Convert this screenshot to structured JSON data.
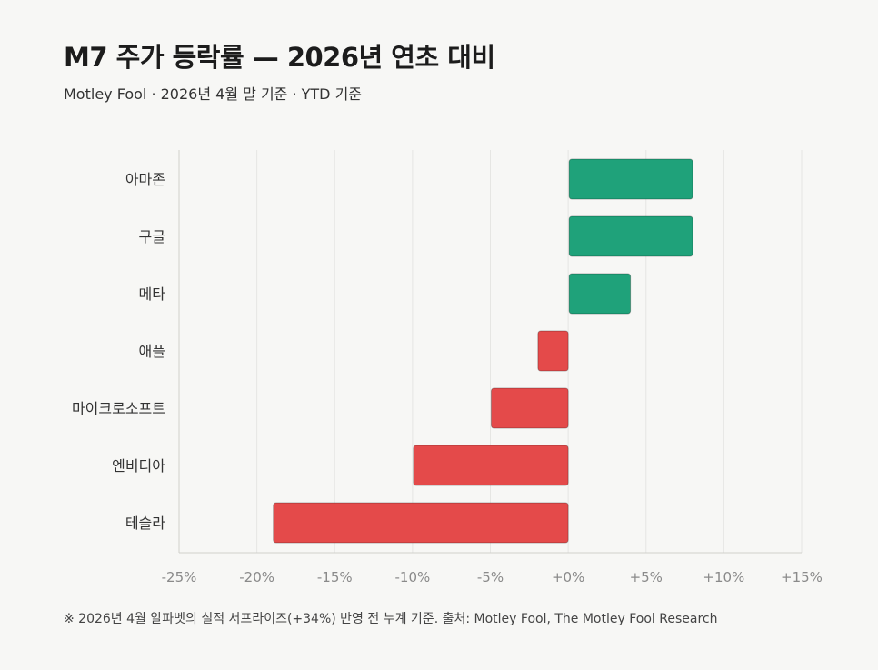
{
  "title": "M7 주가 등락률 — 2026년 연초 대비",
  "subtitle": "Motley Fool · 2026년 4월 말 기준 · YTD 기준",
  "footnote": "※ 2026년 4월 알파벳의 실적 서프라이즈(+34%) 반영 전 누계 기준. 출처: Motley Fool, The Motley Fool Research",
  "colors": {
    "positive": "#1fa27a",
    "negative": "#e44a4a",
    "grid": "#e6e6e3",
    "axis": "#d0d0cc"
  },
  "chart_data": {
    "type": "bar",
    "orientation": "horizontal",
    "categories": [
      "아마존",
      "구글",
      "메타",
      "애플",
      "마이크로소프트",
      "엔비디아",
      "테슬라"
    ],
    "values": [
      8,
      8,
      4,
      -2,
      -5,
      -10,
      -19
    ],
    "unit": "%",
    "xlim": [
      -25,
      15
    ],
    "xticks": [
      -25,
      -20,
      -15,
      -10,
      -5,
      0,
      5,
      10,
      15
    ],
    "xtick_labels": [
      "-25%",
      "-20%",
      "-15%",
      "-10%",
      "-5%",
      "+0%",
      "+5%",
      "+10%",
      "+15%"
    ],
    "grid": true,
    "legend": "none"
  }
}
